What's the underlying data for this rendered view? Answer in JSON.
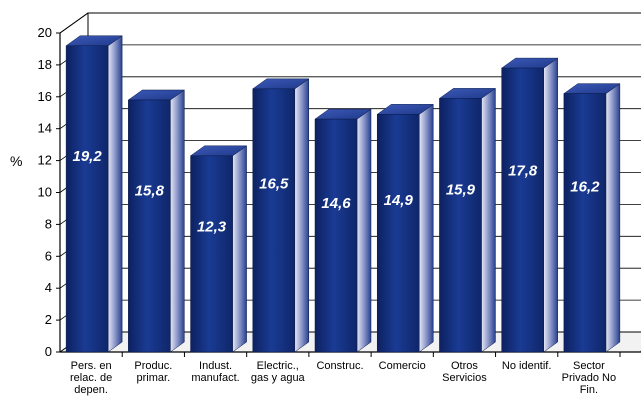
{
  "chart_data": {
    "type": "bar",
    "title": "",
    "xlabel": "",
    "ylabel": "%",
    "ylim": [
      0,
      20
    ],
    "yticks": [
      "0",
      "2",
      "4",
      "6",
      "8",
      "10",
      "12",
      "14",
      "16",
      "18",
      "20"
    ],
    "grid": true,
    "style": "3d",
    "bar_color": "#1b3a8f",
    "categories": [
      [
        "Pers. en",
        "relac. de",
        "depen."
      ],
      [
        "Produc.",
        "primar."
      ],
      [
        "Indust.",
        "manufact."
      ],
      [
        "Electric.,",
        "gas y agua"
      ],
      [
        "Construc."
      ],
      [
        "Comercio"
      ],
      [
        "Otros",
        "Servicios"
      ],
      [
        "No identif."
      ],
      [
        "Sector",
        "Privado No",
        "Fin."
      ]
    ],
    "values": [
      19.2,
      15.8,
      12.3,
      16.5,
      14.6,
      14.9,
      15.9,
      17.8,
      16.2
    ],
    "value_labels": [
      "19,2",
      "15,8",
      "12,3",
      "16,5",
      "14,6",
      "14,9",
      "15,9",
      "17,8",
      "16,2"
    ]
  }
}
